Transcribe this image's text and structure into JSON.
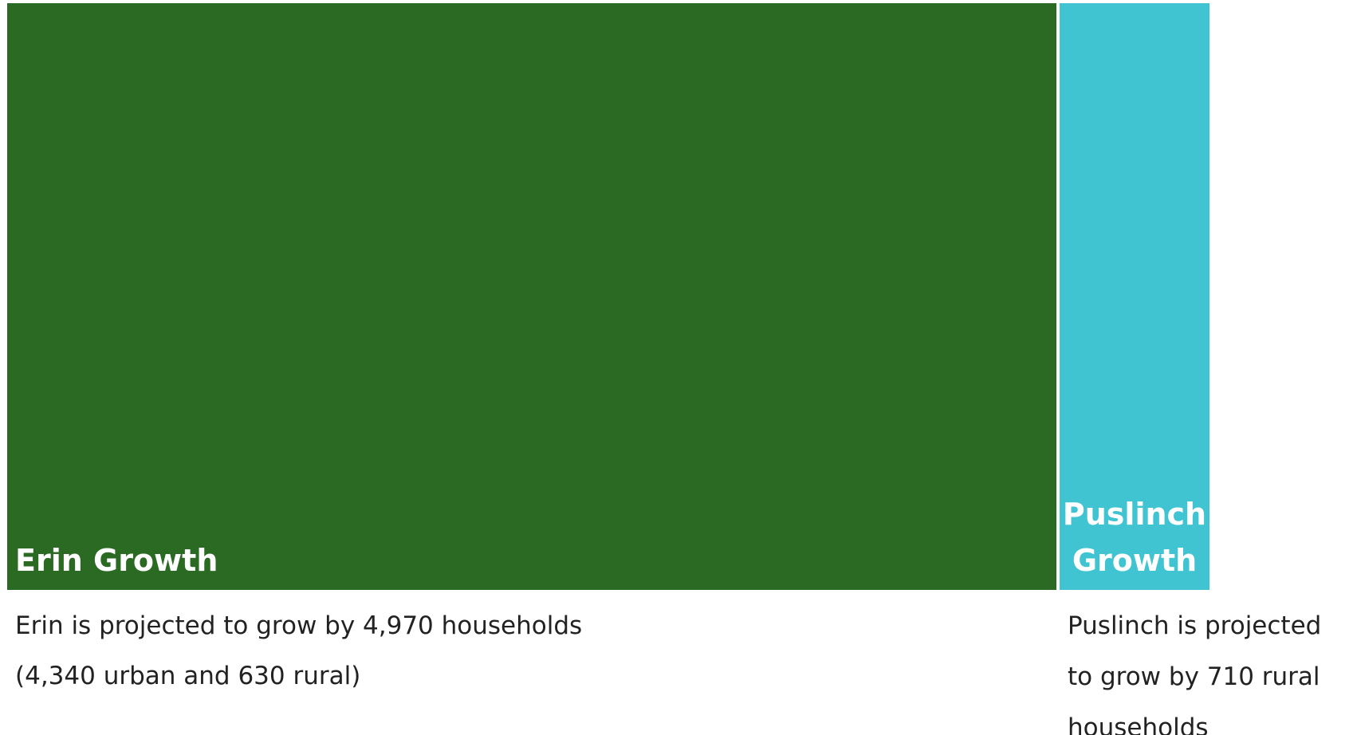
{
  "chart_data": {
    "type": "bar",
    "categories": [
      "Erin Growth",
      "Puslinch Growth"
    ],
    "values": [
      4970,
      710
    ],
    "label_lines": [
      [
        "Erin Growth"
      ],
      [
        "Puslinch",
        "Growth"
      ]
    ],
    "caption_lines": [
      [
        "Erin is projected to grow by 4,970 households",
        "(4,340 urban and 630 rural)"
      ],
      [
        "Puslinch is projected",
        "to grow by 710 rural",
        "households"
      ]
    ],
    "colors": [
      "#2b6a23",
      "#40c4d1"
    ]
  }
}
